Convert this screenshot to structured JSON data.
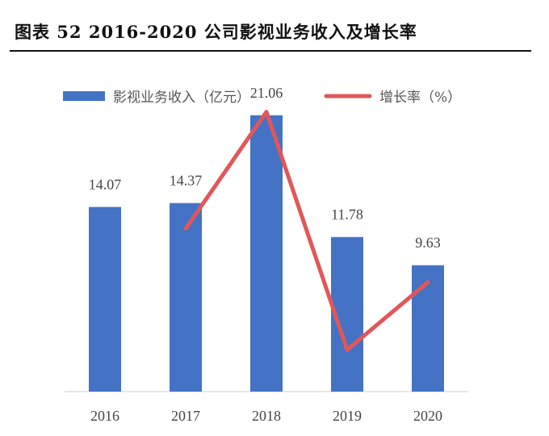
{
  "header": {
    "title": "图表 52   2016-2020 公司影视业务收入及增长率"
  },
  "legend": {
    "bar_label": "影视业务收入（亿元）",
    "line_label": "增长率（%）"
  },
  "colors": {
    "bar": "#4472C4",
    "line": "#E15759",
    "axis": "#cfcfcf"
  },
  "chart_data": {
    "type": "bar",
    "categories": [
      "2016",
      "2017",
      "2018",
      "2019",
      "2020"
    ],
    "series": [
      {
        "name": "影视业务收入（亿元）",
        "type": "bar",
        "values": [
          14.07,
          14.37,
          21.06,
          11.78,
          9.63
        ]
      },
      {
        "name": "增长率（%）",
        "type": "line",
        "values": [
          null,
          2.1,
          46.6,
          -44.1,
          -18.3
        ]
      }
    ],
    "title": "",
    "xlabel": "",
    "ylabel": "",
    "ylim": [
      0,
      24
    ],
    "y2lim": [
      -60,
      60
    ],
    "grid": false,
    "legend_position": "top"
  }
}
